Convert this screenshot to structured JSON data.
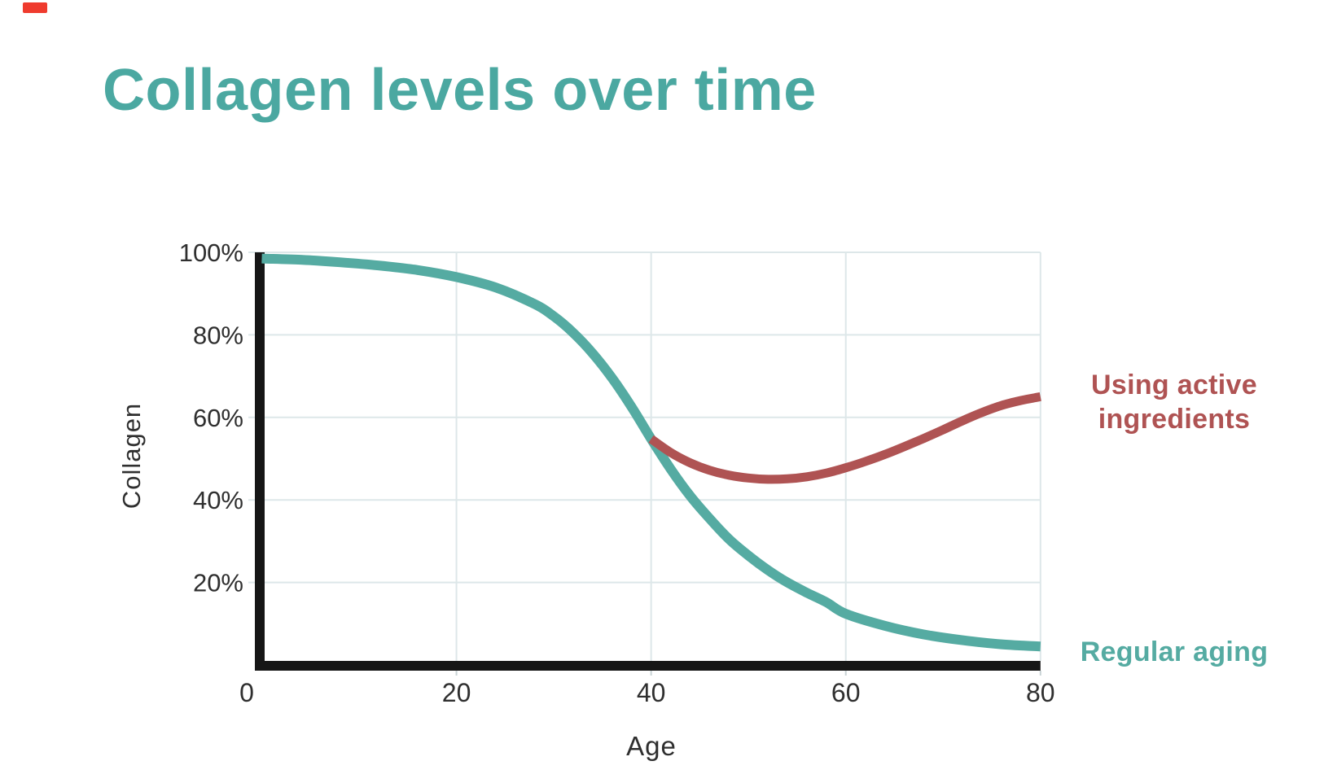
{
  "page": {
    "background": "#ffffff"
  },
  "recording_indicator": {
    "color": "#ef3b2e"
  },
  "title": {
    "text": "Collagen levels over time",
    "color": "#4BA8A1"
  },
  "chart_data": {
    "type": "line",
    "title": "Collagen levels over time",
    "xlabel": "Age",
    "ylabel": "Collagen",
    "xlim": [
      0,
      80
    ],
    "ylim": [
      0,
      100
    ],
    "x_ticks": [
      0,
      20,
      40,
      60,
      80
    ],
    "x_tick_labels": [
      "0",
      "20",
      "40",
      "60",
      "80"
    ],
    "y_ticks": [
      20,
      40,
      60,
      80,
      100
    ],
    "y_tick_labels": [
      "20%",
      "40%",
      "60%",
      "80%",
      "100%"
    ],
    "grid": true,
    "grid_color": "#dde7e9",
    "axis_color": "#161616",
    "legend_position": "right",
    "series": [
      {
        "name": "Regular aging",
        "color": "#55ABA2",
        "line_width": 12,
        "x": [
          0,
          4,
          8,
          12,
          16,
          20,
          24,
          28,
          30,
          32,
          34,
          36,
          38,
          40,
          42,
          44,
          46,
          48,
          50,
          52,
          54,
          56,
          58,
          60,
          64,
          68,
          72,
          76,
          80
        ],
        "y": [
          98.5,
          98.2,
          97.6,
          96.8,
          95.7,
          94,
          91.5,
          87.5,
          84.5,
          80.5,
          75.5,
          69.5,
          62.5,
          54.8,
          47.5,
          41,
          35.5,
          30.5,
          26.5,
          23,
          20,
          17.5,
          15.2,
          12.4,
          9.5,
          7.4,
          6,
          5,
          4.5
        ]
      },
      {
        "name": "Using active ingredients",
        "color": "#AF5353",
        "line_width": 11,
        "x": [
          40,
          42,
          44,
          46,
          48,
          50,
          52,
          54,
          56,
          58,
          60,
          62,
          64,
          66,
          68,
          70,
          72,
          74,
          76,
          78,
          80
        ],
        "y": [
          54.8,
          51.5,
          49,
          47.2,
          46,
          45.3,
          45,
          45.1,
          45.6,
          46.5,
          47.8,
          49.3,
          51,
          52.9,
          54.9,
          57,
          59.2,
          61.2,
          62.9,
          64.1,
          65
        ]
      }
    ],
    "annotations": [
      {
        "text": "Using active ingredients",
        "color": "#AF5353"
      },
      {
        "text": "Regular aging",
        "color": "#55ABA2"
      }
    ]
  }
}
